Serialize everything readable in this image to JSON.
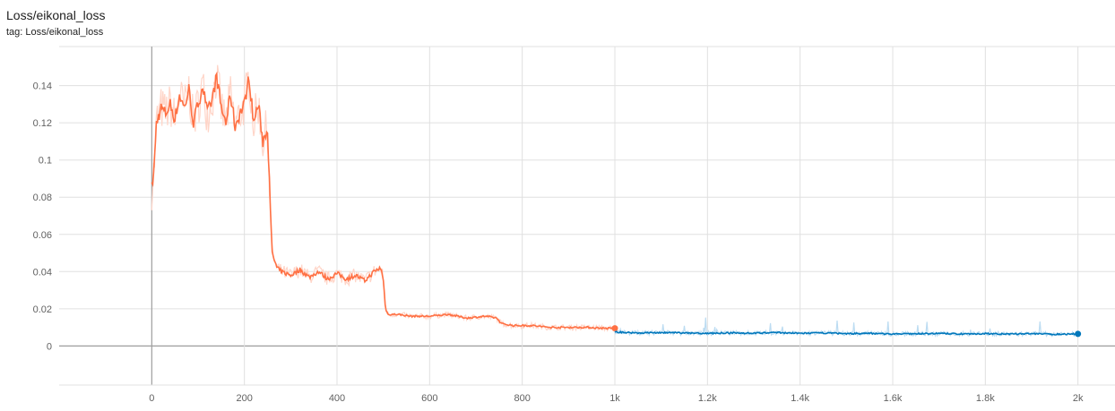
{
  "card": {
    "title": "Loss/eikonal_loss",
    "tag": "tag: Loss/eikonal_loss"
  },
  "chart_data": {
    "type": "line",
    "title": "Loss/eikonal_loss",
    "xlabel": "",
    "ylabel": "",
    "xlim": [
      -200,
      2080
    ],
    "ylim": [
      -0.021,
      0.161
    ],
    "x_ticks": [
      0,
      200,
      400,
      600,
      800,
      1000,
      1200,
      1400,
      1600,
      1800,
      2000
    ],
    "x_tick_labels": [
      "0",
      "200",
      "400",
      "600",
      "800",
      "1k",
      "1.2k",
      "1.4k",
      "1.6k",
      "1.8k",
      "2k"
    ],
    "y_ticks": [
      0,
      0.02,
      0.04,
      0.06,
      0.08,
      0.1,
      0.12,
      0.14
    ],
    "y_tick_labels": [
      "0",
      "0.02",
      "0.04",
      "0.06",
      "0.08",
      "0.1",
      "0.12",
      "0.14"
    ],
    "grid": true,
    "colors": {
      "run1": "#ff7043",
      "run1_raw": "#ffd5c8",
      "run2": "#0077bb",
      "run2_raw": "#bcdcf2",
      "grid": "#e0e0e0",
      "zero_axis": "#9e9e9e"
    },
    "series": [
      {
        "color": "#ff7043",
        "x": [
          0,
          5,
          10,
          20,
          30,
          40,
          50,
          60,
          70,
          80,
          90,
          100,
          110,
          120,
          130,
          140,
          150,
          160,
          170,
          180,
          190,
          200,
          210,
          220,
          230,
          240,
          250,
          255,
          260,
          270,
          280,
          300,
          320,
          340,
          360,
          380,
          400,
          420,
          440,
          460,
          480,
          495,
          500,
          505,
          510,
          530,
          560,
          600,
          640,
          680,
          720,
          745,
          755,
          780,
          820,
          860,
          900,
          940,
          980,
          1000
        ],
        "y": [
          0.085,
          0.095,
          0.12,
          0.128,
          0.125,
          0.13,
          0.122,
          0.135,
          0.128,
          0.138,
          0.12,
          0.13,
          0.14,
          0.125,
          0.132,
          0.145,
          0.128,
          0.12,
          0.135,
          0.118,
          0.125,
          0.13,
          0.145,
          0.12,
          0.13,
          0.11,
          0.118,
          0.08,
          0.05,
          0.042,
          0.04,
          0.038,
          0.041,
          0.037,
          0.04,
          0.036,
          0.039,
          0.036,
          0.038,
          0.035,
          0.04,
          0.042,
          0.035,
          0.02,
          0.017,
          0.017,
          0.016,
          0.016,
          0.017,
          0.015,
          0.016,
          0.015,
          0.012,
          0.011,
          0.011,
          0.01,
          0.01,
          0.01,
          0.0095,
          0.0095
        ]
      },
      {
        "color": "#0077bb",
        "x": [
          1000,
          1050,
          1100,
          1150,
          1200,
          1250,
          1300,
          1350,
          1400,
          1450,
          1500,
          1550,
          1600,
          1650,
          1700,
          1750,
          1800,
          1850,
          1900,
          1950,
          2000
        ],
        "y": [
          0.0075,
          0.007,
          0.0072,
          0.007,
          0.0068,
          0.007,
          0.0069,
          0.0072,
          0.0068,
          0.007,
          0.0066,
          0.0068,
          0.0064,
          0.0066,
          0.0067,
          0.0065,
          0.0066,
          0.0064,
          0.0066,
          0.0063,
          0.0065
        ]
      }
    ]
  }
}
